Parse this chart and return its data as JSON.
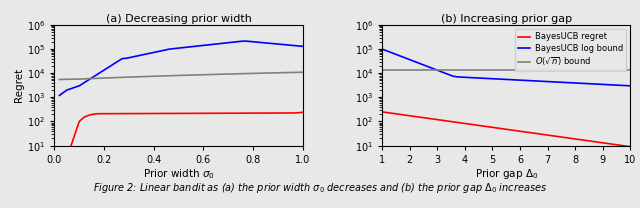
{
  "title_a": "(a) Decreasing prior width",
  "title_b": "(b) Increasing prior gap",
  "xlabel_a": "Prior width $\\sigma_0$",
  "xlabel_b": "Prior gap $\\Delta_0$",
  "ylabel": "Regret",
  "legend_labels": [
    "BayesUCB regret",
    "BayesUCB log bound",
    "$O(\\sqrt{n})$ bound"
  ],
  "ylim_log": [
    1,
    6
  ],
  "xlim_a": [
    0.0,
    1.0
  ],
  "xlim_b": [
    1,
    10
  ],
  "xticks_a": [
    0.0,
    0.2,
    0.4,
    0.6,
    0.8,
    1.0
  ],
  "xticks_b": [
    1,
    2,
    3,
    4,
    5,
    6,
    7,
    8,
    9,
    10
  ],
  "background_color": "#e8e8e8",
  "caption": "Figure 2: Linear bandit as (a) the prior width $\\sigma_0$ decreases and (b) the prior gap $\\Delta_0$ increases"
}
